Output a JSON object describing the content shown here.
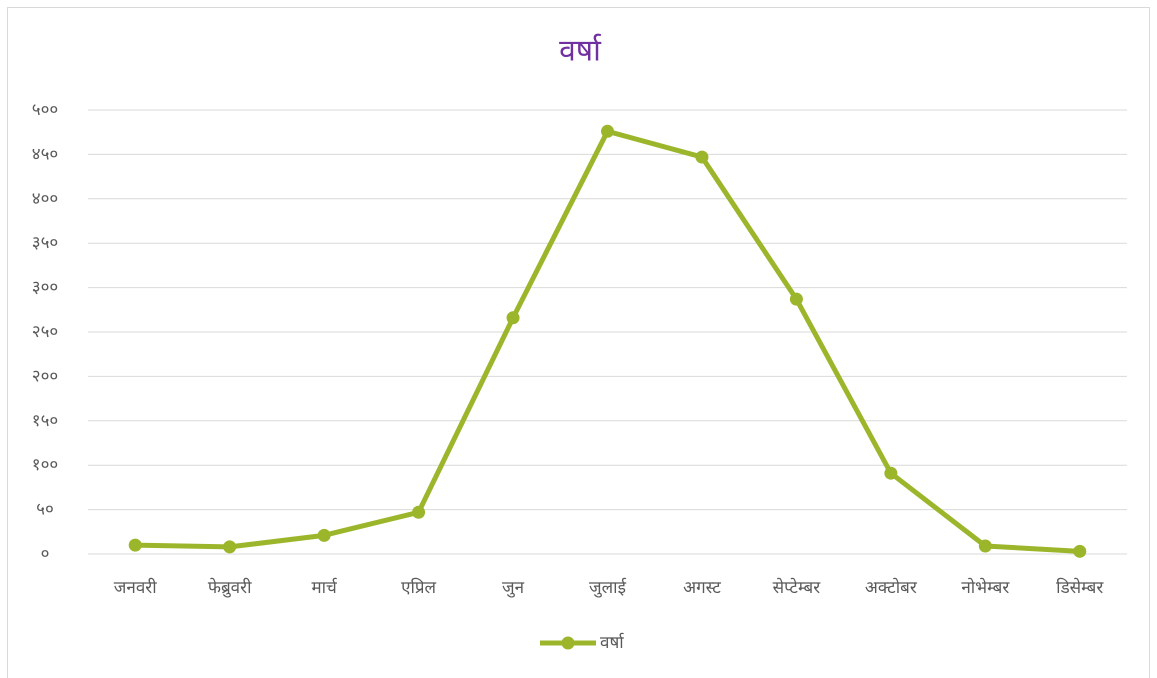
{
  "chart_data": {
    "type": "line",
    "title": "वर्षा",
    "categories": [
      "जनवरी",
      "फेब्रुवरी",
      "मार्च",
      "एप्रिल",
      "जुन",
      "जुलाई",
      "अगस्ट",
      "सेप्टेम्बर",
      "अक्टोबर",
      "नोभेम्बर",
      "डिसेम्बर"
    ],
    "series": [
      {
        "name": "वर्षा",
        "color": "#9cb62b",
        "values": [
          10,
          8,
          21,
          47,
          266,
          476,
          447,
          287,
          91,
          9,
          3
        ]
      }
    ],
    "ylim": [
      0,
      500
    ],
    "yticks": [
      {
        "value": 0,
        "label": "०"
      },
      {
        "value": 50,
        "label": "५०"
      },
      {
        "value": 100,
        "label": "१००"
      },
      {
        "value": 150,
        "label": "१५०"
      },
      {
        "value": 200,
        "label": "२००"
      },
      {
        "value": 250,
        "label": "२५०"
      },
      {
        "value": 300,
        "label": "३००"
      },
      {
        "value": 350,
        "label": "३५०"
      },
      {
        "value": 400,
        "label": "४००"
      },
      {
        "value": 450,
        "label": "४५०"
      },
      {
        "value": 500,
        "label": "५००"
      }
    ],
    "grid": true,
    "legend": "bottom"
  }
}
